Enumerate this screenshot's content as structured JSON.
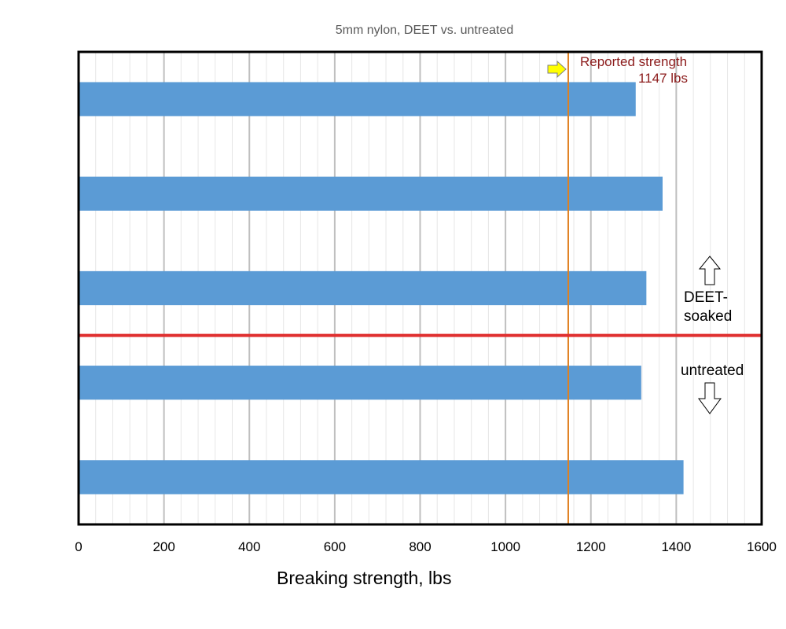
{
  "chart_data": {
    "type": "bar",
    "orientation": "horizontal",
    "title": "5mm nylon, DEET vs. untreated",
    "xlabel": "Breaking strength, lbs",
    "ylabel": "",
    "xlim": [
      0,
      1600
    ],
    "xticks": [
      0,
      200,
      400,
      600,
      800,
      1000,
      1200,
      1400,
      1600
    ],
    "grid": "vertical major and minor gridlines",
    "series": [
      {
        "values": [
          1305,
          1368,
          1330,
          1318,
          1417
        ]
      }
    ],
    "colors": {
      "bar": "#5b9bd5",
      "divider": "#e03030",
      "reference_line": "#e08020",
      "grid_major": "#bfbfbf",
      "grid_minor": "#e6e6e6",
      "arrow_fill": "#ffff00"
    },
    "reference_line": {
      "value": 1147,
      "label_line1": "Reported strength",
      "label_line2": "1147 lbs"
    },
    "group_divider": {
      "after_bar_index": 2
    },
    "annotations": {
      "upper_group_line1": "DEET-",
      "upper_group_line2": "soaked",
      "lower_group": "untreated",
      "upper_arrow": "up-arrow-icon",
      "lower_arrow": "down-arrow-icon",
      "pointer_arrow": "right-arrow-icon"
    }
  }
}
